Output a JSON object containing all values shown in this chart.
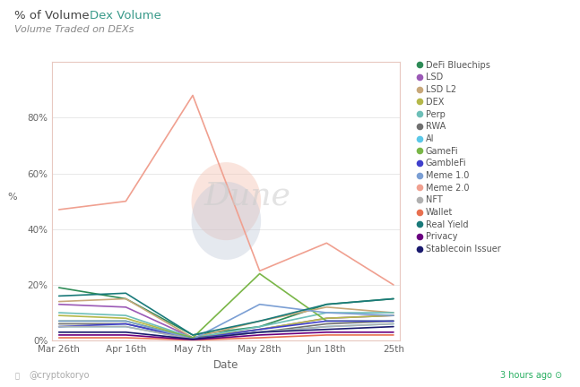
{
  "title_main": "% of Volume   Dex Volume",
  "title_sub": "Volume Traded on DEXs",
  "xlabel": "Date",
  "ylabel": "%",
  "background": "#ffffff",
  "border_color": "#e8c8c0",
  "x_labels": [
    "Mar 26th",
    "Apr 16th",
    "May 7th",
    "May 28th",
    "Jun 18th",
    "25th"
  ],
  "x_values": [
    0,
    1,
    2,
    3,
    4,
    5
  ],
  "series": [
    {
      "name": "DeFi Bluechips",
      "color": "#2e8b57",
      "values": [
        19,
        15,
        2,
        5,
        13,
        15
      ]
    },
    {
      "name": "LSD",
      "color": "#9b59b6",
      "values": [
        13,
        12,
        1,
        4,
        8,
        9
      ]
    },
    {
      "name": "LSD L2",
      "color": "#c8a87a",
      "values": [
        14,
        15,
        1,
        7,
        12,
        10
      ]
    },
    {
      "name": "DEX",
      "color": "#b5b84a",
      "values": [
        9,
        8,
        1,
        4,
        8,
        9
      ]
    },
    {
      "name": "Perp",
      "color": "#6dbfb8",
      "values": [
        10,
        9,
        1,
        5,
        10,
        10
      ]
    },
    {
      "name": "RWA",
      "color": "#707070",
      "values": [
        6,
        6,
        1,
        3,
        6,
        7
      ]
    },
    {
      "name": "AI",
      "color": "#5bc8e8",
      "values": [
        5,
        5,
        0.5,
        3,
        5,
        6
      ]
    },
    {
      "name": "GameFi",
      "color": "#7ab648",
      "values": [
        7,
        7,
        1,
        24,
        7,
        7
      ]
    },
    {
      "name": "GambleFi",
      "color": "#4040cc",
      "values": [
        5,
        6,
        0.5,
        4,
        7,
        7
      ]
    },
    {
      "name": "Meme 1.0",
      "color": "#7b9fd4",
      "values": [
        7,
        7,
        0.5,
        13,
        10,
        9
      ]
    },
    {
      "name": "Meme 2.0",
      "color": "#f0a090",
      "values": [
        47,
        50,
        88,
        25,
        35,
        20
      ]
    },
    {
      "name": "NFT",
      "color": "#b0b0b0",
      "values": [
        5,
        5,
        0.5,
        3,
        5,
        6
      ]
    },
    {
      "name": "Wallet",
      "color": "#e87050",
      "values": [
        1,
        1,
        0.2,
        1,
        2,
        2
      ]
    },
    {
      "name": "Real Yield",
      "color": "#1a7a7a",
      "values": [
        16,
        17,
        2,
        7,
        13,
        15
      ]
    },
    {
      "name": "Privacy",
      "color": "#6a0080",
      "values": [
        2,
        2,
        0.3,
        2,
        3,
        3
      ]
    },
    {
      "name": "Stablecoin Issuer",
      "color": "#1a1a6e",
      "values": [
        3,
        3,
        0.5,
        3,
        4,
        5
      ]
    }
  ],
  "ylim": [
    0,
    100
  ],
  "yticks": [
    0,
    20,
    40,
    60,
    80
  ],
  "watermark": "Dune",
  "footer_left": "@cryptokoryo",
  "footer_right": "3 hours ago",
  "footer_left_color": "#aaaaaa",
  "footer_right_color": "#27ae60"
}
